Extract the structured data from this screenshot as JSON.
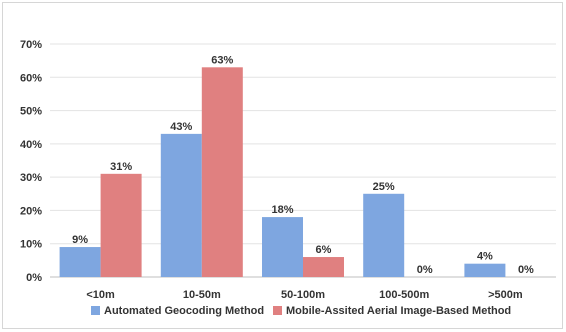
{
  "chart_data": {
    "type": "bar",
    "title": "",
    "xlabel": "",
    "ylabel": "",
    "categories": [
      "<10m",
      "10-50m",
      "50-100m",
      "100-500m",
      ">500m"
    ],
    "ylim": [
      0,
      70
    ],
    "yticks": [
      "0%",
      "10%",
      "20%",
      "30%",
      "40%",
      "50%",
      "60%",
      "70%"
    ],
    "grid": true,
    "legend_position": "bottom",
    "series": [
      {
        "name": "Automated Geocoding Method",
        "color": "#7ea6e0",
        "values": [
          9,
          43,
          18,
          25,
          4
        ],
        "labels": [
          "9%",
          "43%",
          "18%",
          "25%",
          "4%"
        ]
      },
      {
        "name": "Mobile-Assited Aerial Image-Based Method",
        "color": "#e08080",
        "values": [
          31,
          63,
          6,
          0,
          0
        ],
        "labels": [
          "31%",
          "63%",
          "6%",
          "0%",
          "0%"
        ]
      }
    ]
  }
}
